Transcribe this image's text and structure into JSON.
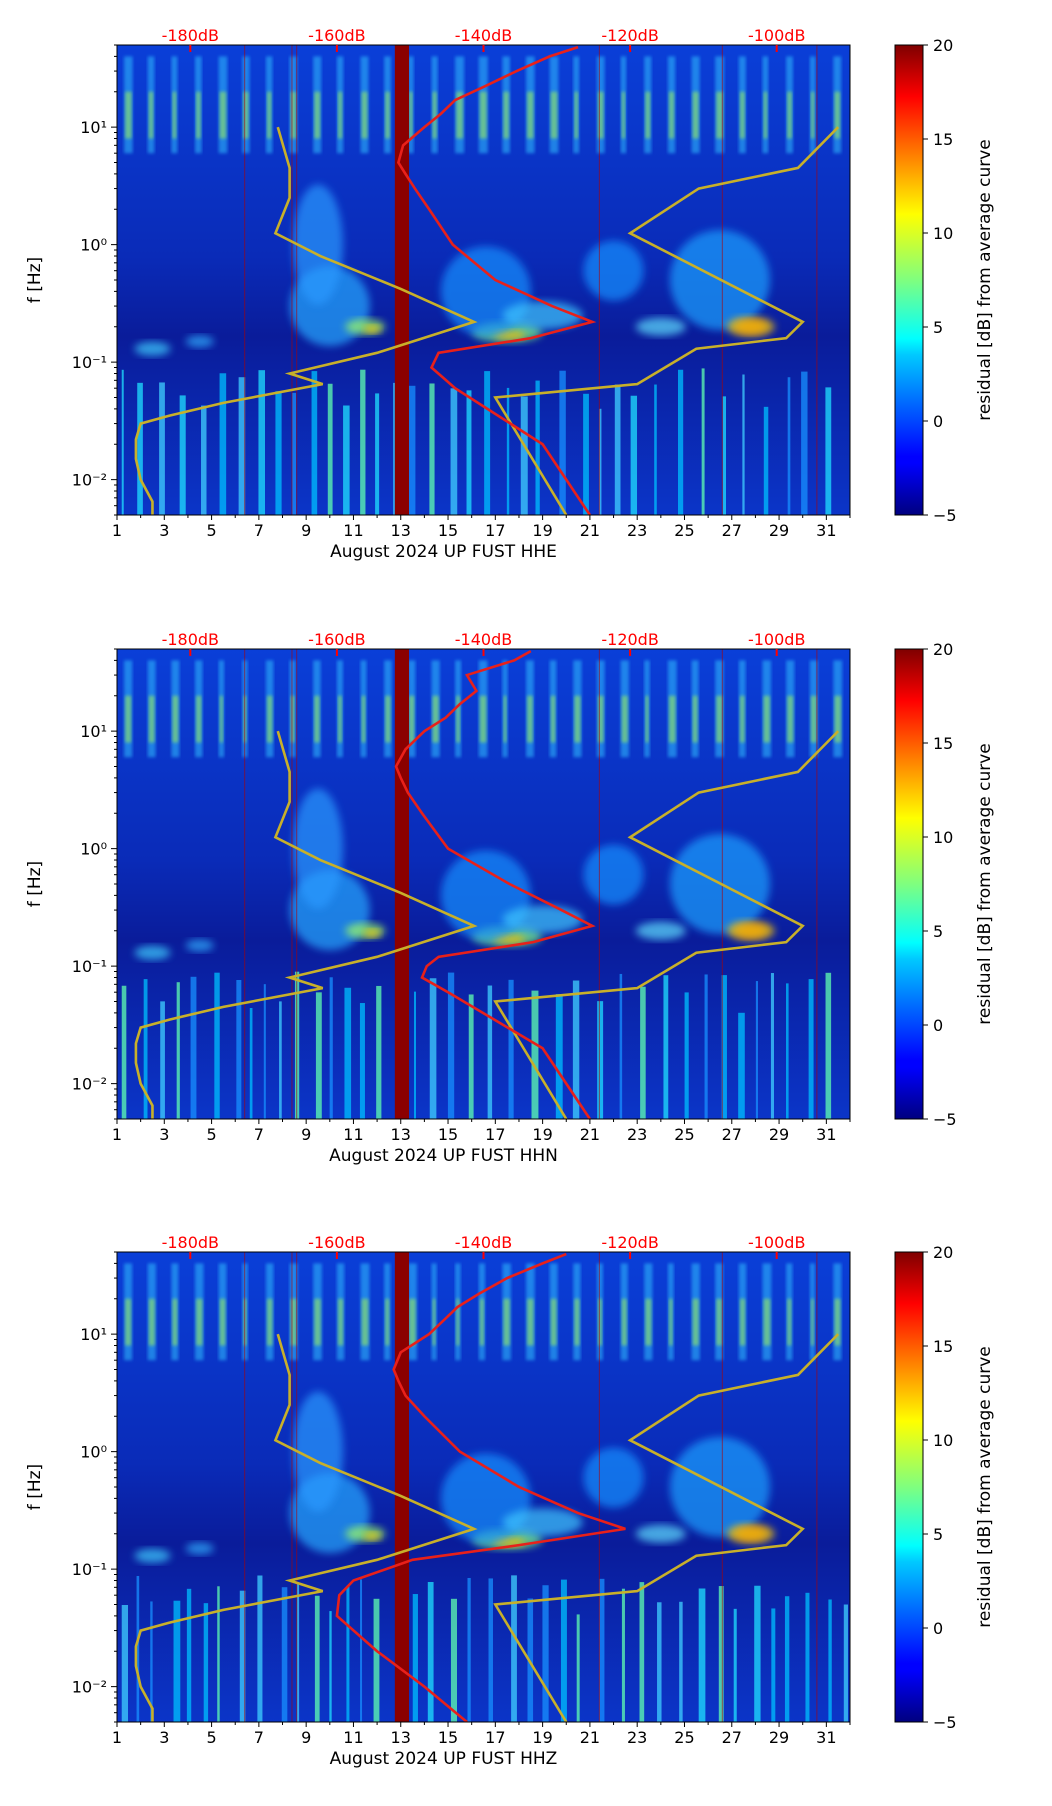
{
  "figure": {
    "colors": {
      "background": "#ffffff",
      "db_scale": "#ff0000",
      "psd_curve": "#e8201a",
      "model_curves": "#c8b02a",
      "maintenance_band": "#8b0000"
    },
    "colormap": "jet"
  },
  "chart_data": [
    {
      "type": "heatmap",
      "title": "",
      "xlabel": "August 2024 UP FUST  HHE",
      "ylabel": "f [Hz]",
      "x_ticks": [
        "1",
        "3",
        "5",
        "7",
        "9",
        "11",
        "13",
        "15",
        "17",
        "19",
        "21",
        "23",
        "25",
        "27",
        "29",
        "31"
      ],
      "xlim": [
        1,
        32
      ],
      "y_scale": "log",
      "y_ticks": [
        "10⁻²",
        "10⁻¹",
        "10⁰",
        "10¹"
      ],
      "ylim": [
        0.005,
        50
      ],
      "top_axis_ticks": [
        "-180dB",
        "-160dB",
        "-140dB",
        "-120dB",
        "-100dB"
      ],
      "top_axis_days": [
        4.1,
        10.3,
        16.5,
        22.7,
        28.9
      ],
      "colorbar": {
        "label": "residual [dB] from average curve",
        "ticks": [
          "−5",
          "0",
          "5",
          "10",
          "15",
          "20"
        ],
        "range": [
          -5,
          20
        ]
      },
      "gap_band_days": [
        12.75,
        13.35
      ],
      "model_curves": {
        "low_noise": {
          "f": [
            0.005,
            0.0065,
            0.01,
            0.015,
            0.022,
            0.03,
            0.035,
            0.045,
            0.065,
            0.08,
            0.12,
            0.22,
            0.42,
            0.8,
            1.25,
            2.5,
            4.5,
            10
          ],
          "day": [
            2.5,
            2.5,
            2.0,
            1.8,
            1.8,
            2.0,
            3.2,
            5.5,
            9.7,
            8.3,
            12.0,
            16.1,
            13.0,
            9.6,
            7.7,
            8.3,
            8.3,
            7.8
          ]
        },
        "high_noise": {
          "f": [
            0.005,
            0.05,
            0.065,
            0.13,
            0.16,
            0.22,
            1.25,
            3.0,
            4.5,
            10
          ],
          "day": [
            20.0,
            17.0,
            23.0,
            25.5,
            29.3,
            30.0,
            22.7,
            25.6,
            29.8,
            31.5
          ]
        }
      },
      "psd_curve": {
        "f": [
          0.005,
          0.02,
          0.06,
          0.09,
          0.12,
          0.16,
          0.22,
          0.3,
          0.5,
          1.0,
          2.0,
          3.0,
          4.0,
          5.0,
          7.0,
          10,
          13,
          17,
          22,
          30,
          40,
          48
        ],
        "day": [
          21.0,
          19.0,
          15.3,
          14.3,
          14.6,
          18.5,
          21.1,
          19.4,
          17.0,
          15.2,
          14.2,
          13.6,
          13.2,
          12.9,
          13.1,
          14.0,
          14.7,
          15.3,
          16.5,
          17.9,
          19.3,
          20.5
        ]
      }
    },
    {
      "type": "heatmap",
      "title": "",
      "xlabel": "August 2024 UP FUST  HHN",
      "ylabel": "f [Hz]",
      "x_ticks": [
        "1",
        "3",
        "5",
        "7",
        "9",
        "11",
        "13",
        "15",
        "17",
        "19",
        "21",
        "23",
        "25",
        "27",
        "29",
        "31"
      ],
      "xlim": [
        1,
        32
      ],
      "y_scale": "log",
      "y_ticks": [
        "10⁻²",
        "10⁻¹",
        "10⁰",
        "10¹"
      ],
      "ylim": [
        0.005,
        50
      ],
      "top_axis_ticks": [
        "-180dB",
        "-160dB",
        "-140dB",
        "-120dB",
        "-100dB"
      ],
      "top_axis_days": [
        4.1,
        10.3,
        16.5,
        22.7,
        28.9
      ],
      "colorbar": {
        "label": "residual [dB] from average curve",
        "ticks": [
          "−5",
          "0",
          "5",
          "10",
          "15",
          "20"
        ],
        "range": [
          -5,
          20
        ]
      },
      "gap_band_days": [
        12.75,
        13.35
      ],
      "model_curves": {
        "low_noise": {
          "f": [
            0.005,
            0.0065,
            0.01,
            0.015,
            0.022,
            0.03,
            0.035,
            0.045,
            0.065,
            0.08,
            0.12,
            0.22,
            0.42,
            0.8,
            1.25,
            2.5,
            4.5,
            10
          ],
          "day": [
            2.5,
            2.5,
            2.0,
            1.8,
            1.8,
            2.0,
            3.2,
            5.5,
            9.7,
            8.3,
            12.0,
            16.1,
            13.0,
            9.6,
            7.7,
            8.3,
            8.3,
            7.8
          ]
        },
        "high_noise": {
          "f": [
            0.005,
            0.05,
            0.065,
            0.13,
            0.16,
            0.22,
            1.25,
            3.0,
            4.5,
            10
          ],
          "day": [
            20.0,
            17.0,
            23.0,
            25.5,
            29.3,
            30.0,
            22.7,
            25.6,
            29.8,
            31.5
          ]
        }
      },
      "psd_curve": {
        "f": [
          0.005,
          0.02,
          0.06,
          0.08,
          0.1,
          0.12,
          0.16,
          0.22,
          0.3,
          0.5,
          1.0,
          2.0,
          3.0,
          4.0,
          5.0,
          7.0,
          10,
          13,
          17,
          22,
          30,
          40,
          48
        ],
        "day": [
          21.0,
          19.0,
          15.0,
          13.9,
          14.1,
          14.6,
          18.6,
          21.1,
          19.8,
          17.6,
          15.0,
          13.9,
          13.3,
          13.0,
          12.8,
          13.2,
          14.0,
          14.9,
          15.5,
          16.2,
          15.8,
          17.8,
          18.5
        ]
      }
    },
    {
      "type": "heatmap",
      "title": "",
      "xlabel": "August 2024 UP FUST  HHZ",
      "ylabel": "f [Hz]",
      "x_ticks": [
        "1",
        "3",
        "5",
        "7",
        "9",
        "11",
        "13",
        "15",
        "17",
        "19",
        "21",
        "23",
        "25",
        "27",
        "29",
        "31"
      ],
      "xlim": [
        1,
        32
      ],
      "y_scale": "log",
      "y_ticks": [
        "10⁻²",
        "10⁻¹",
        "10⁰",
        "10¹"
      ],
      "ylim": [
        0.005,
        50
      ],
      "top_axis_ticks": [
        "-180dB",
        "-160dB",
        "-140dB",
        "-120dB",
        "-100dB"
      ],
      "top_axis_days": [
        4.1,
        10.3,
        16.5,
        22.7,
        28.9
      ],
      "colorbar": {
        "label": "residual [dB] from average curve",
        "ticks": [
          "−5",
          "0",
          "5",
          "10",
          "15",
          "20"
        ],
        "range": [
          -5,
          20
        ]
      },
      "gap_band_days": [
        12.75,
        13.35
      ],
      "model_curves": {
        "low_noise": {
          "f": [
            0.005,
            0.0065,
            0.01,
            0.015,
            0.022,
            0.03,
            0.035,
            0.045,
            0.065,
            0.08,
            0.12,
            0.22,
            0.42,
            0.8,
            1.25,
            2.5,
            4.5,
            10
          ],
          "day": [
            2.5,
            2.5,
            2.0,
            1.8,
            1.8,
            2.0,
            3.2,
            5.5,
            9.7,
            8.3,
            12.0,
            16.1,
            13.0,
            9.6,
            7.7,
            8.3,
            8.3,
            7.8
          ]
        },
        "high_noise": {
          "f": [
            0.005,
            0.05,
            0.065,
            0.13,
            0.16,
            0.22,
            1.25,
            3.0,
            4.5,
            10
          ],
          "day": [
            20.0,
            17.0,
            23.0,
            25.5,
            29.3,
            30.0,
            22.7,
            25.6,
            29.8,
            31.5
          ]
        }
      },
      "psd_curve": {
        "f": [
          0.005,
          0.01,
          0.02,
          0.04,
          0.06,
          0.08,
          0.12,
          0.16,
          0.22,
          0.3,
          0.5,
          1.0,
          2.0,
          3.0,
          4.0,
          5.0,
          7.0,
          10,
          13,
          17,
          22,
          30,
          40,
          48
        ],
        "day": [
          15.8,
          14.0,
          12.0,
          10.3,
          10.4,
          11.0,
          13.5,
          18.0,
          22.5,
          20.5,
          18.0,
          15.5,
          14.0,
          13.2,
          12.9,
          12.7,
          13.0,
          14.2,
          14.8,
          15.4,
          16.3,
          17.5,
          19.0,
          20.0
        ]
      }
    }
  ]
}
